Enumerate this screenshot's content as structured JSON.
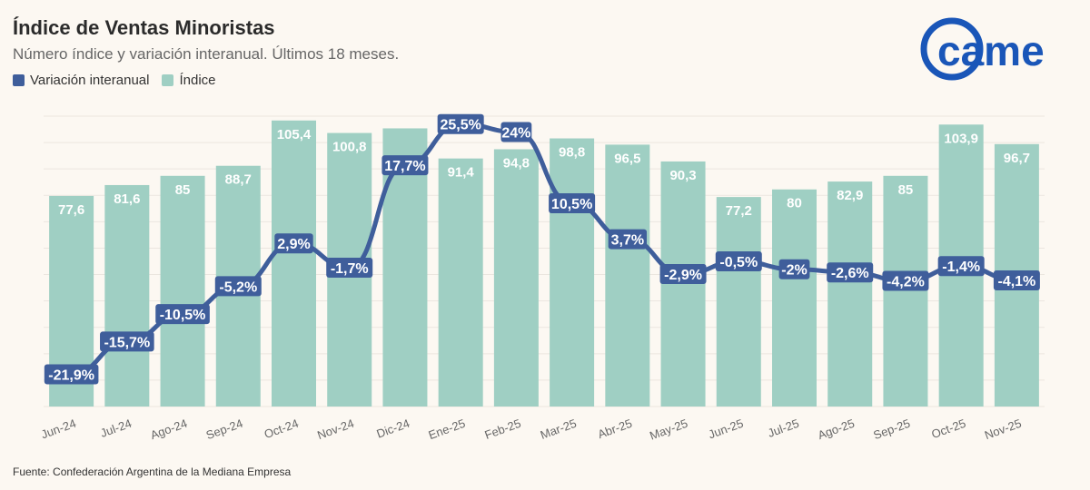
{
  "header": {
    "title": "Índice de Ventas Minoristas",
    "subtitle": "Número índice y variación interanual. Últimos 18 meses."
  },
  "logo": {
    "text": "came"
  },
  "source": "Fuente: Confederación Argentina de la Mediana Empresa",
  "colors": {
    "bar": "#9fcfc3",
    "line": "#3f5e9b",
    "label_bg": "#3f5e9b",
    "label_text": "#ffffff",
    "bar_label_text": "#ffffff",
    "logo": "#1a56b8"
  },
  "chart_data": {
    "type": "bar+line",
    "title": "Índice de Ventas Minoristas",
    "subtitle": "Número índice y variación interanual. Últimos 18 meses.",
    "categories": [
      "Jun-24",
      "Jul-24",
      "Ago-24",
      "Sep-24",
      "Oct-24",
      "Nov-24",
      "Dic-24",
      "Ene-25",
      "Feb-25",
      "Mar-25",
      "Abr-25",
      "May-25",
      "Jun-25",
      "Jul-25",
      "Ago-25",
      "Sep-25",
      "Oct-25",
      "Nov-25"
    ],
    "series": [
      {
        "name": "Índice",
        "type": "bar",
        "values": [
          77.6,
          81.6,
          85,
          88.7,
          105.4,
          100.8,
          102.5,
          91.4,
          94.8,
          98.8,
          96.5,
          90.3,
          77.2,
          80,
          82.9,
          85,
          103.9,
          96.7
        ],
        "labels": [
          "77,6",
          "81,6",
          "85",
          "88,7",
          "105,4",
          "100,8",
          "",
          "91,4",
          "94,8",
          "98,8",
          "96,5",
          "90,3",
          "77,2",
          "80",
          "82,9",
          "85",
          "103,9",
          "96,7"
        ]
      },
      {
        "name": "Variación interanual",
        "type": "line",
        "values": [
          -21.9,
          -15.7,
          -10.5,
          -5.2,
          2.9,
          -1.7,
          17.7,
          25.5,
          24,
          10.5,
          3.7,
          -2.9,
          -0.5,
          -2,
          -2.6,
          -4.2,
          -1.4,
          -4.1
        ],
        "labels": [
          "-21,9%",
          "-15,7%",
          "-10,5%",
          "-5,2%",
          "2,9%",
          "-1,7%",
          "17,7%",
          "25,5%",
          "24%",
          "10,5%",
          "3,7%",
          "-2,9%",
          "-0,5%",
          "-2%",
          "-2,6%",
          "-4,2%",
          "-1,4%",
          "-4,1%"
        ]
      }
    ],
    "bar_axis": [
      0,
      107
    ],
    "line_axis": [
      -28,
      27
    ],
    "legend": [
      "Variación interanual",
      "Índice"
    ],
    "legend_position": "top-left",
    "grid": true
  }
}
